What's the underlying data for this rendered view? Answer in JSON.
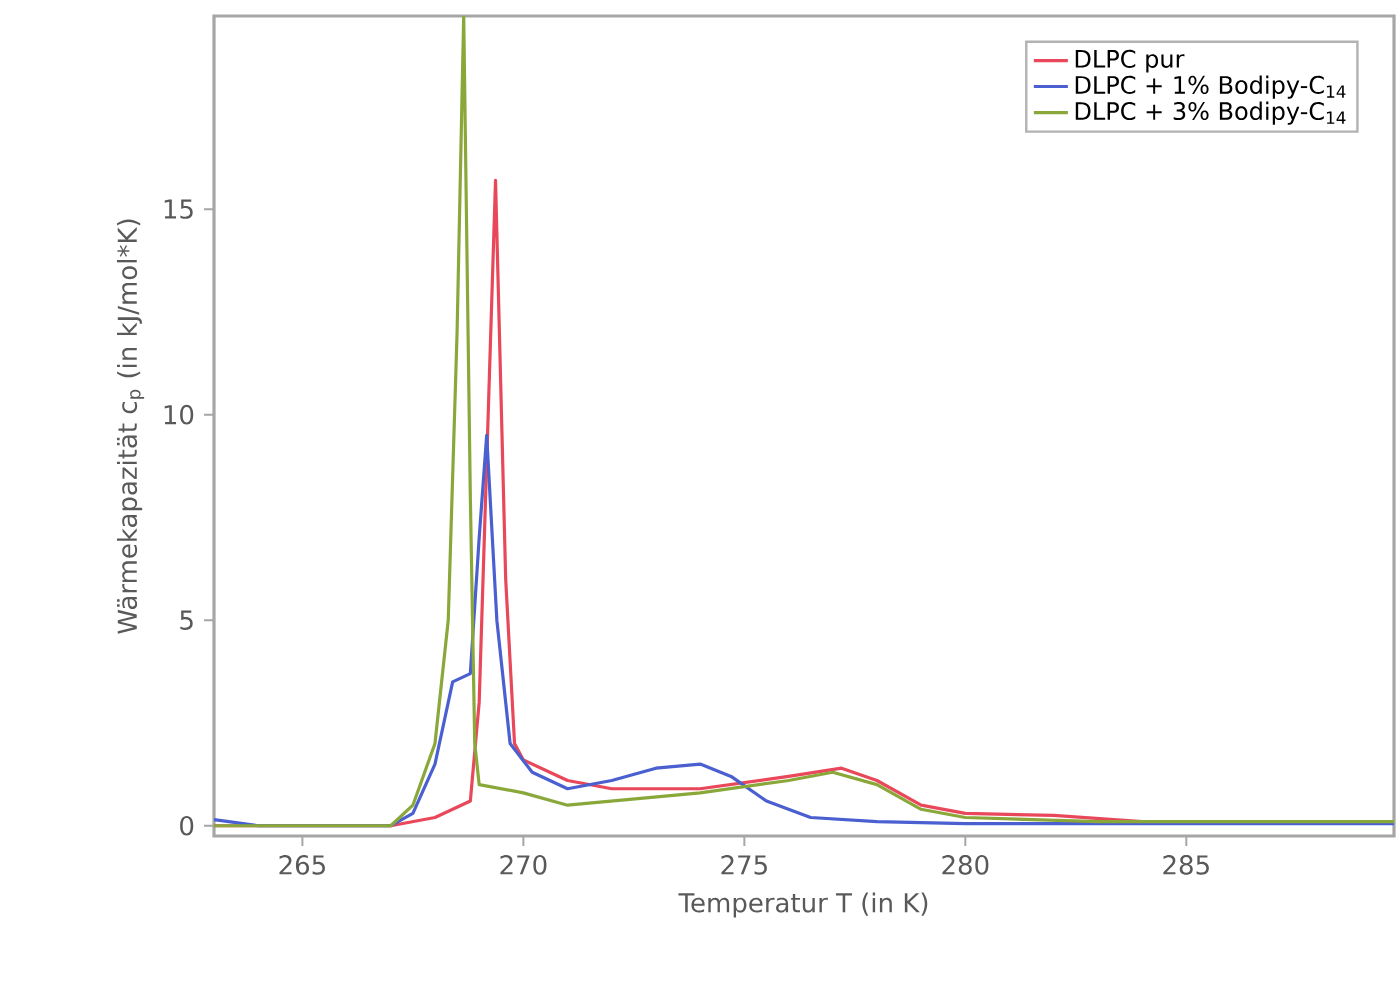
{
  "chart_data": {
    "type": "line",
    "xlabel": "Temperatur T (in K)",
    "ylabel": "Wärmekapazität c$_{p}$ (in kJ/mol*K)",
    "xlim": [
      263.0,
      289.7
    ],
    "ylim": [
      -0.25,
      19.7
    ],
    "xticks": [
      265,
      270,
      275,
      280,
      285
    ],
    "yticks": [
      0,
      5,
      10,
      15
    ],
    "grid": false,
    "legend": "top right",
    "marker": "none",
    "line_style": "solid",
    "series": [
      {
        "name": "DLPC pur",
        "color": "#e8485a",
        "x": [
          263,
          265,
          267,
          268,
          268.8,
          269.0,
          269.37,
          269.6,
          269.8,
          270,
          271,
          272,
          274,
          276,
          277.2,
          278,
          279,
          280,
          282,
          284,
          289.7
        ],
        "values": [
          0,
          0,
          0,
          0.2,
          0.6,
          3,
          15.7,
          6,
          2,
          1.6,
          1.1,
          0.9,
          0.9,
          1.2,
          1.4,
          1.1,
          0.5,
          0.3,
          0.25,
          0.1,
          0.1
        ]
      },
      {
        "name": "DLPC + 1% Bodipy-C$_{14}$",
        "color": "#4a5fd0",
        "x": [
          263,
          264,
          267,
          267.5,
          268,
          268.4,
          268.8,
          269.0,
          269.17,
          269.4,
          269.7,
          270.2,
          271,
          272,
          273,
          274,
          274.7,
          275.5,
          276.5,
          278,
          280,
          289.7
        ],
        "values": [
          0.15,
          0,
          0,
          0.3,
          1.5,
          3.5,
          3.7,
          7,
          9.5,
          5,
          2,
          1.3,
          0.9,
          1.1,
          1.4,
          1.5,
          1.2,
          0.6,
          0.2,
          0.1,
          0.05,
          0.05
        ]
      },
      {
        "name": "DLPC + 3% Bodipy-C$_{14}$",
        "color": "#8aa83a",
        "x": [
          263,
          267,
          267.5,
          268,
          268.3,
          268.5,
          268.65,
          268.8,
          268.9,
          269,
          270,
          271,
          272,
          274,
          276,
          277,
          278,
          279,
          280,
          283,
          289.7
        ],
        "values": [
          0,
          0,
          0.5,
          2,
          5,
          12,
          19.7,
          8,
          2,
          1.0,
          0.8,
          0.5,
          0.6,
          0.8,
          1.1,
          1.3,
          1.0,
          0.4,
          0.2,
          0.1,
          0.1
        ]
      }
    ]
  }
}
